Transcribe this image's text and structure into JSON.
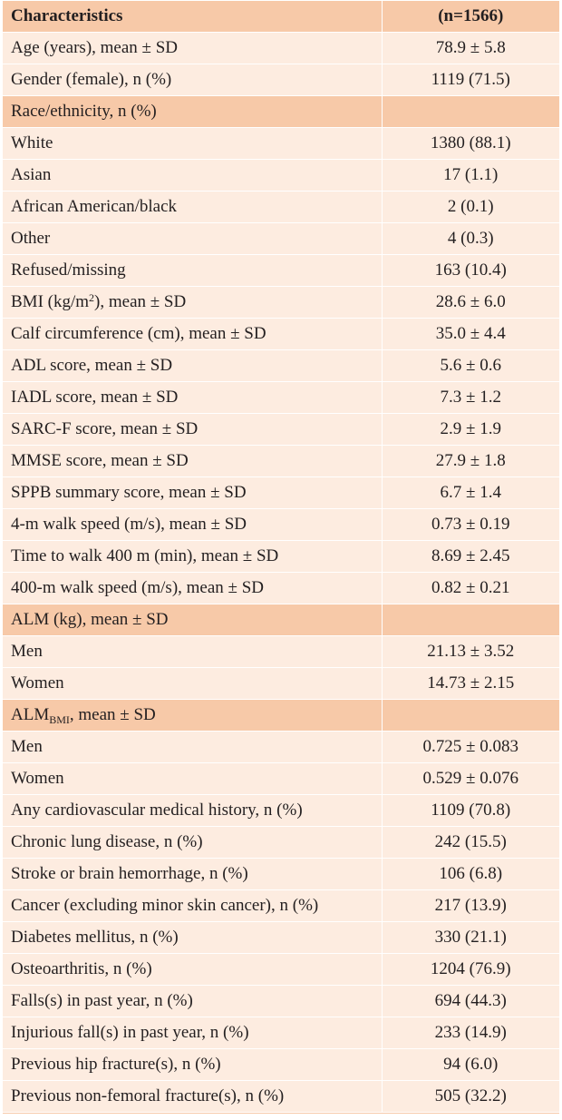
{
  "table": {
    "header": {
      "characteristic": "Characteristics",
      "value": "(n=1566)"
    },
    "rows": [
      {
        "label": "Age (years), mean ± SD",
        "value": "78.9 ± 5.8"
      },
      {
        "label": "Gender (female), n (%)",
        "value": "1119 (71.5)"
      },
      {
        "label": "Race/ethnicity, n (%)",
        "value": ""
      },
      {
        "label": "White",
        "value": "1380 (88.1)"
      },
      {
        "label": "Asian",
        "value": "17 (1.1)"
      },
      {
        "label": "African American/black",
        "value": "2 (0.1)"
      },
      {
        "label": "Other",
        "value": "4 (0.3)"
      },
      {
        "label": "Refused/missing",
        "value": "163 (10.4)"
      },
      {
        "label_pre": "BMI (kg/m",
        "label_sup": "2",
        "label_post": "), mean ± SD",
        "value": "28.6 ± 6.0"
      },
      {
        "label": "Calf circumference (cm), mean ± SD",
        "value": "35.0 ± 4.4"
      },
      {
        "label": "ADL score, mean ± SD",
        "value": "5.6 ± 0.6"
      },
      {
        "label": "IADL score, mean ± SD",
        "value": "7.3 ± 1.2"
      },
      {
        "label": "SARC-F score, mean ± SD",
        "value": "2.9 ± 1.9"
      },
      {
        "label": "MMSE score, mean ± SD",
        "value": "27.9 ± 1.8"
      },
      {
        "label": "SPPB summary score, mean ± SD",
        "value": "6.7 ± 1.4"
      },
      {
        "label": "4-m walk speed (m/s), mean ± SD",
        "value": "0.73 ± 0.19"
      },
      {
        "label": "Time to walk 400 m (min), mean ± SD",
        "value": "8.69 ± 2.45"
      },
      {
        "label": "400-m walk speed (m/s), mean ± SD",
        "value": "0.82 ± 0.21"
      },
      {
        "label": "ALM (kg), mean ± SD",
        "value": ""
      },
      {
        "label": "Men",
        "value": "21.13 ± 3.52"
      },
      {
        "label": "Women",
        "value": "14.73 ± 2.15"
      },
      {
        "label_pre": "ALM",
        "label_sub": "BMI",
        "label_post": ", mean ± SD",
        "value": ""
      },
      {
        "label": "Men",
        "value": "0.725 ± 0.083"
      },
      {
        "label": "Women",
        "value": "0.529 ± 0.076"
      },
      {
        "label": "Any cardiovascular medical history, n (%)",
        "value": "1109 (70.8)"
      },
      {
        "label": "Chronic lung disease, n (%)",
        "value": "242 (15.5)"
      },
      {
        "label": "Stroke or brain hemorrhage, n (%)",
        "value": "106 (6.8)"
      },
      {
        "label": "Cancer (excluding minor skin cancer), n (%)",
        "value": "217 (13.9)"
      },
      {
        "label": "Diabetes mellitus, n (%)",
        "value": "330 (21.1)"
      },
      {
        "label": "Osteoarthritis, n (%)",
        "value": "1204 (76.9)"
      },
      {
        "label": "Falls(s) in past year, n (%)",
        "value": "694 (44.3)"
      },
      {
        "label": "Injurious fall(s) in past year, n (%)",
        "value": "233 (14.9)"
      },
      {
        "label": "Previous hip fracture(s), n (%)",
        "value": "94 (6.0)"
      },
      {
        "label": "Previous non-femoral fracture(s), n (%)",
        "value": "505 (32.2)"
      }
    ]
  },
  "colors": {
    "header_bg": "#f7c9a8",
    "row_bg": "#fdece0",
    "text": "#231f20"
  }
}
